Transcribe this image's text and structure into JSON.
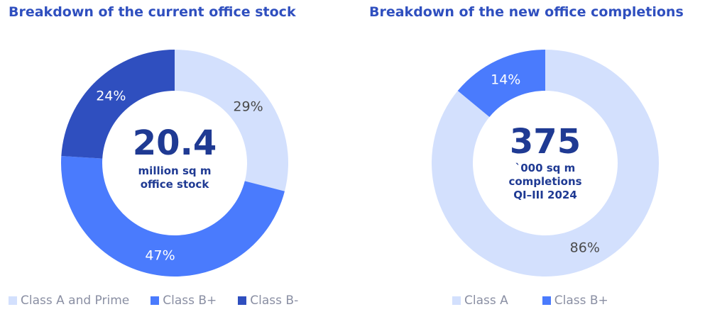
{
  "chart_data": [
    {
      "type": "pie",
      "title": "Breakdown of the current office stock",
      "center": {
        "value": "20.4",
        "lines": [
          "million sq m",
          "office stock"
        ]
      },
      "series": [
        {
          "name": "Class A and Prime",
          "value": 29,
          "label": "29%",
          "color": "#d3e0fd",
          "label_color": "#4a4a4a"
        },
        {
          "name": "Class B+",
          "value": 47,
          "label": "47%",
          "color": "#4a7bfd",
          "label_color": "#ffffff"
        },
        {
          "name": "Class B-",
          "value": 24,
          "label": "24%",
          "color": "#2f4fbf",
          "label_color": "#ffffff"
        }
      ]
    },
    {
      "type": "pie",
      "title": "Breakdown of the new office completions",
      "center": {
        "value": "375",
        "lines": [
          "`000 sq m",
          "completions",
          "QI–III 2024"
        ]
      },
      "series": [
        {
          "name": "Class A",
          "value": 86,
          "label": "86%",
          "color": "#d3e0fd",
          "label_color": "#4a4a4a"
        },
        {
          "name": "Class B+",
          "value": 14,
          "label": "14%",
          "color": "#4a7bfd",
          "label_color": "#ffffff"
        }
      ]
    }
  ]
}
